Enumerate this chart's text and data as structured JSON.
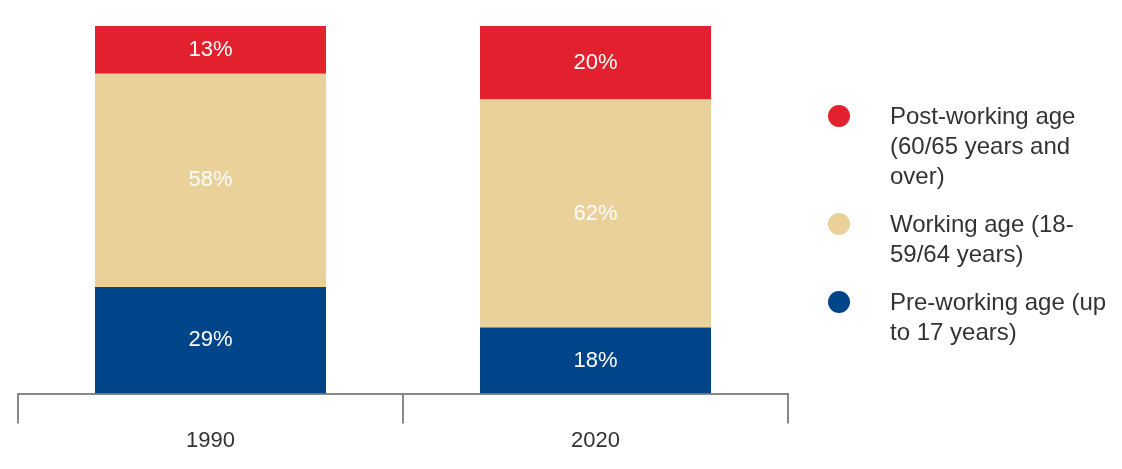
{
  "chart_data": {
    "type": "bar",
    "stacked": true,
    "categories": [
      "1990",
      "2020"
    ],
    "series": [
      {
        "name": "Pre-working age (up to 17 years)",
        "color": "#004489",
        "values": [
          29,
          18
        ],
        "value_labels": [
          "29%",
          "18%"
        ]
      },
      {
        "name": "Working age (18-59/64 years)",
        "color": "#e9d199",
        "values": [
          58,
          62
        ],
        "value_labels": [
          "58%",
          "62%"
        ]
      },
      {
        "name": "Post-working age (60/65 years and over)",
        "color": "#e3202e",
        "values": [
          13,
          20
        ],
        "value_labels": [
          "13%",
          "20%"
        ]
      }
    ],
    "legend": "right",
    "grid": false
  }
}
